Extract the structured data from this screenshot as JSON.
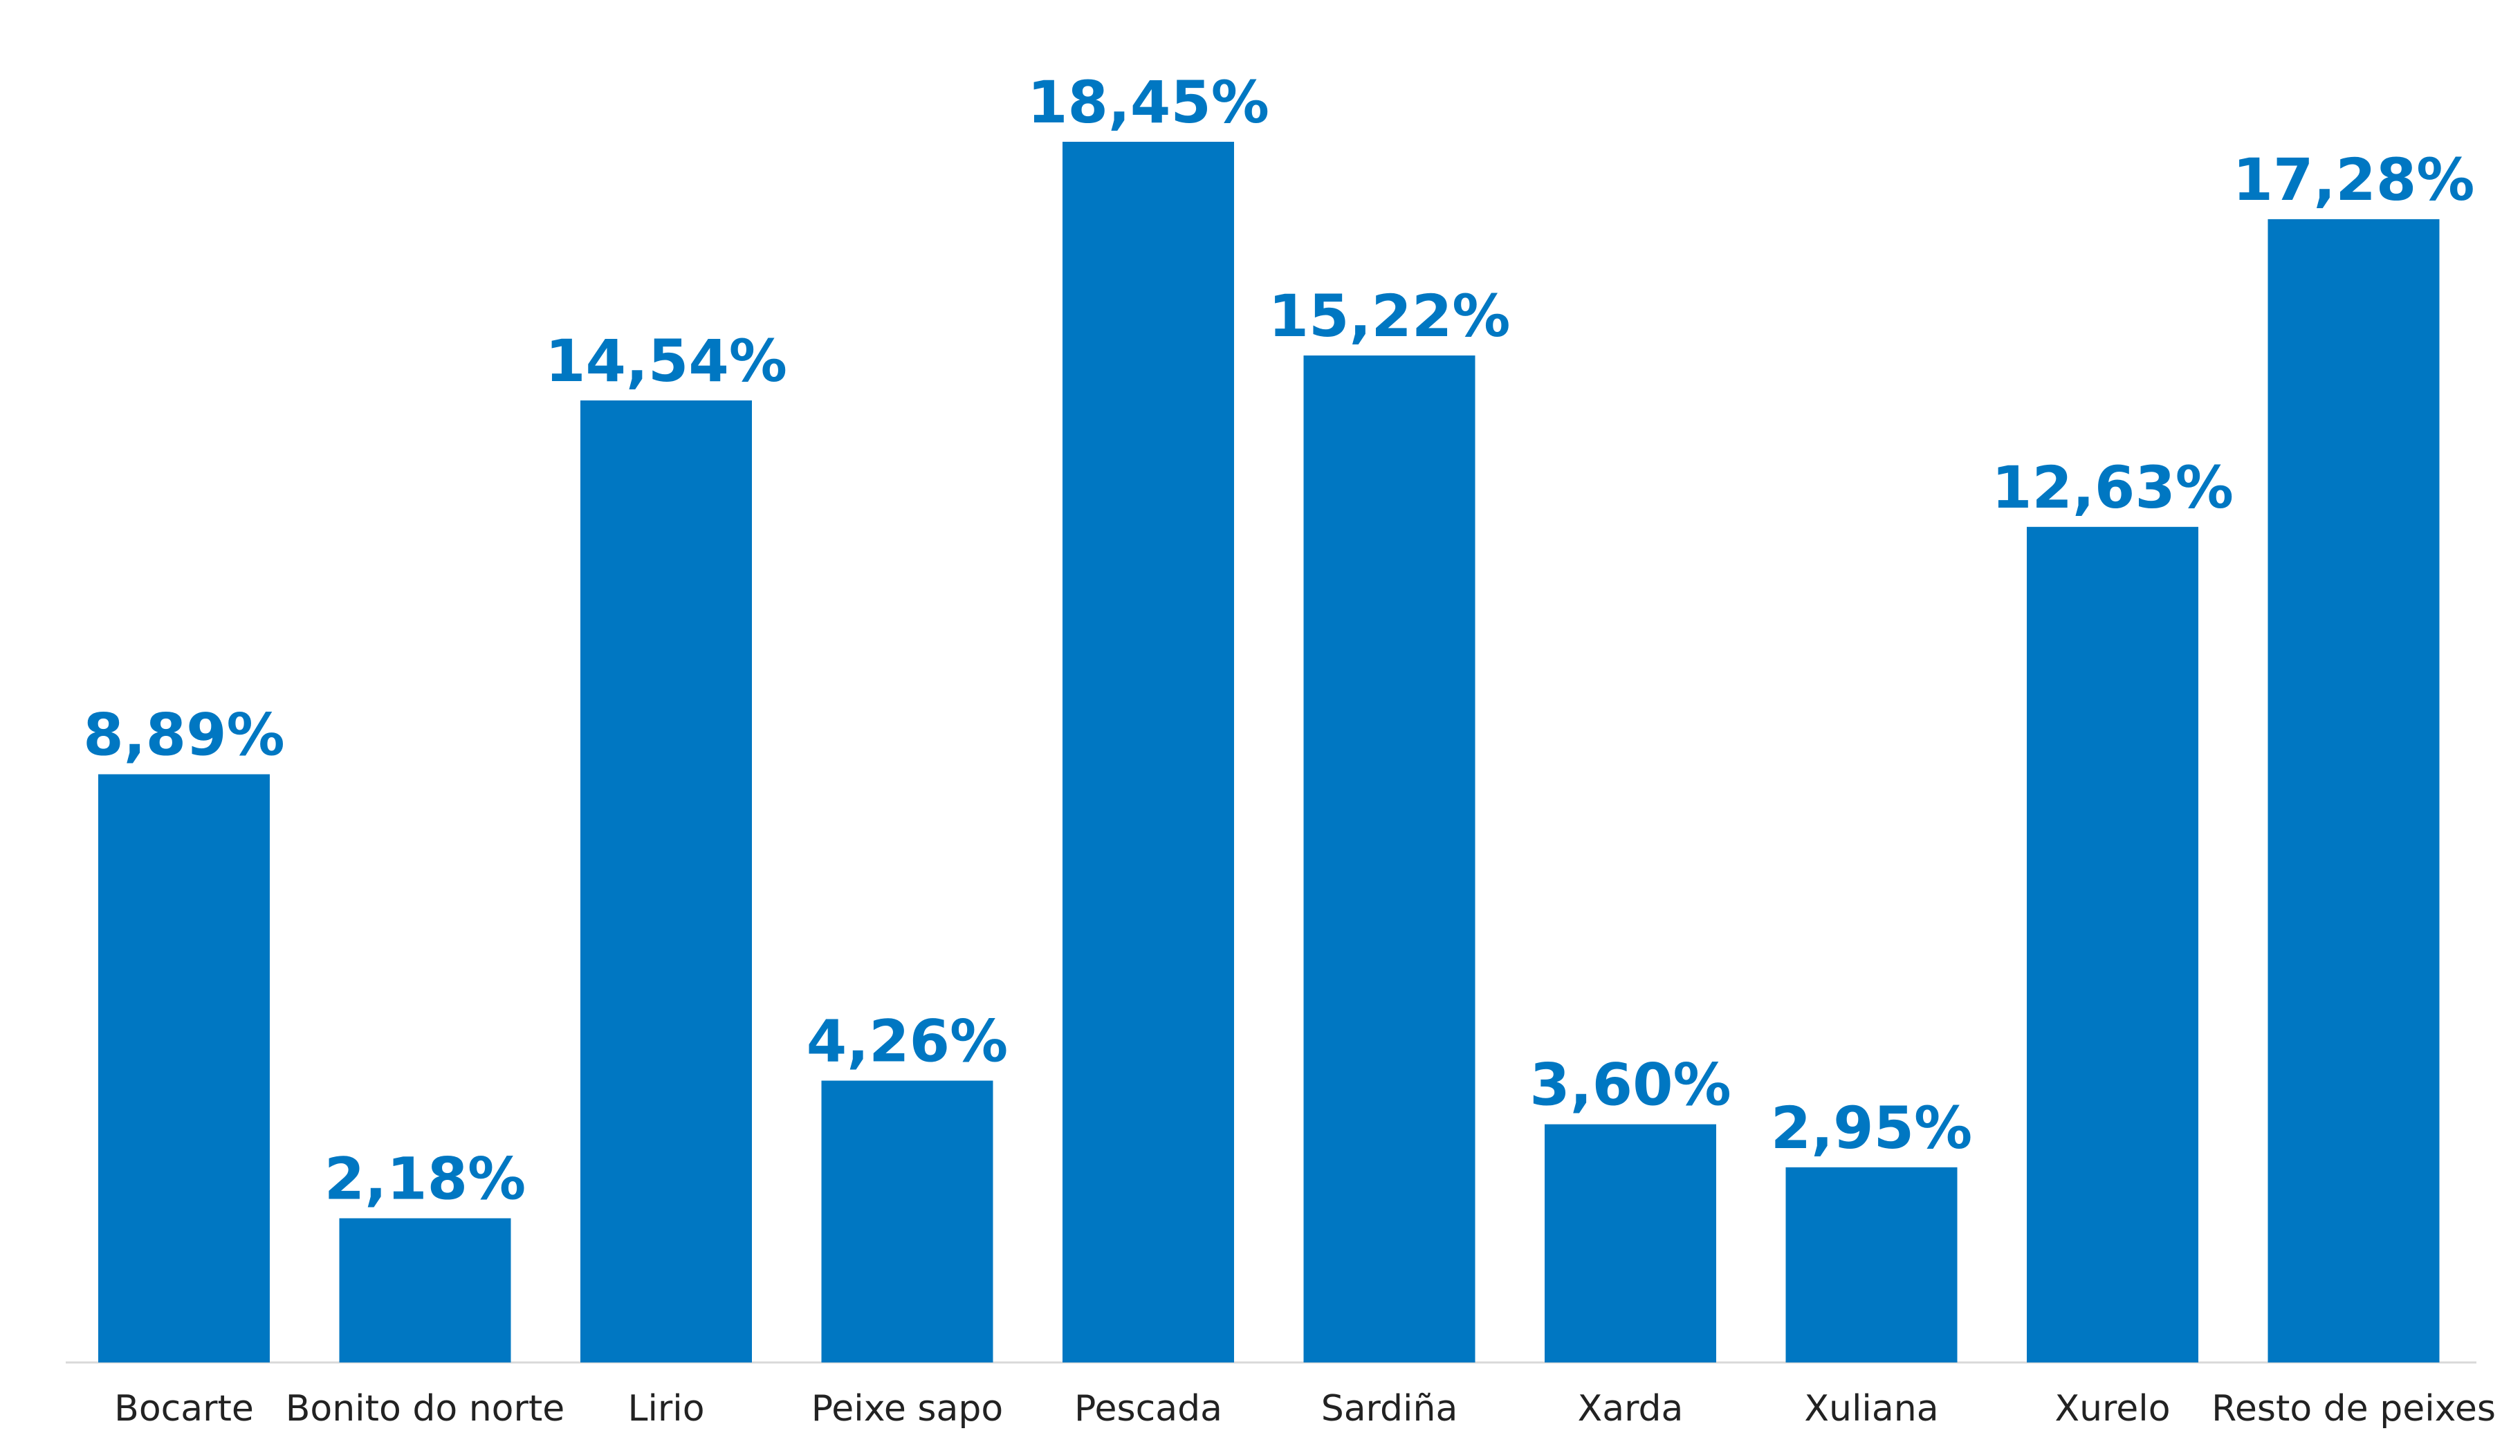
{
  "chart_data": {
    "type": "bar",
    "categories": [
      "Bocarte",
      "Bonito do norte",
      "Lirio",
      "Peixe sapo",
      "Pescada",
      "Sardiña",
      "Xarda",
      "Xuliana",
      "Xurelo",
      "Resto de peixes"
    ],
    "values": [
      8.89,
      2.18,
      14.54,
      4.26,
      18.45,
      15.22,
      3.6,
      2.95,
      12.63,
      17.28
    ],
    "value_labels": [
      "8,89%",
      "2,18%",
      "14,54%",
      "4,26%",
      "18,45%",
      "15,22%",
      "3,60%",
      "2,95%",
      "12,63%",
      "17,28%"
    ],
    "unit": "%",
    "ylim": [
      0,
      18.45
    ],
    "grid": false,
    "legend": "none",
    "colors": {
      "bar": "#0077C2",
      "label": "#0077C2",
      "axis": "#D9D9D9"
    }
  }
}
